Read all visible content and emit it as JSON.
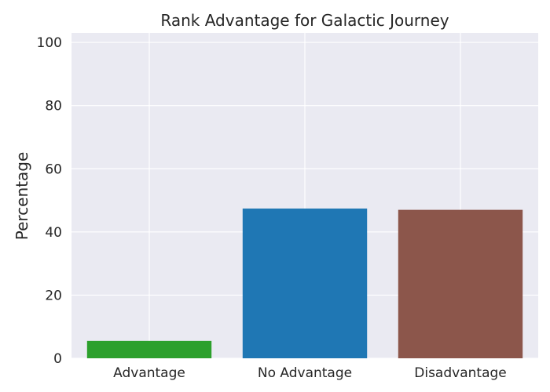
{
  "chart_data": {
    "type": "bar",
    "title": "Rank Advantage for Galactic Journey",
    "xlabel": "",
    "ylabel": "Percentage",
    "categories": [
      "Advantage",
      "No Advantage",
      "Disadvantage"
    ],
    "values": [
      5.5,
      47.4,
      47.0
    ],
    "colors": [
      "#2ca02c",
      "#1f77b4",
      "#8c564b"
    ],
    "ylim": [
      0,
      103
    ],
    "yticks": [
      0,
      20,
      40,
      60,
      80,
      100
    ],
    "grid": true,
    "background_color": "#eaeaf2",
    "grid_color": "#ffffff"
  }
}
